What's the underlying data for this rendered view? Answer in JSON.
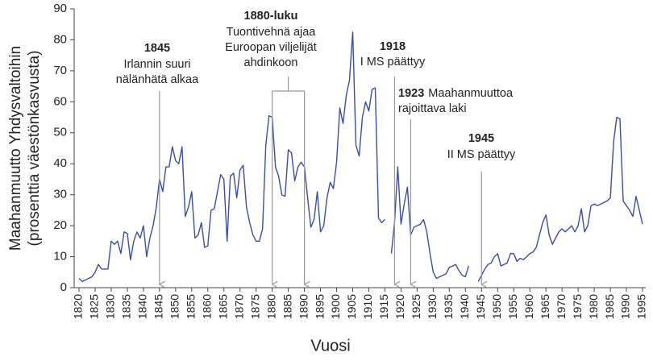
{
  "chart_data": {
    "type": "line",
    "y_label_lines": [
      "Maahanmuutto Yhdysvaltoihin",
      "(prosenttia väestönkasvusta)"
    ],
    "x_label": "Vuosi",
    "x": [
      1820,
      1821,
      1822,
      1823,
      1824,
      1825,
      1826,
      1827,
      1828,
      1829,
      1830,
      1831,
      1832,
      1833,
      1834,
      1835,
      1836,
      1837,
      1838,
      1839,
      1840,
      1841,
      1842,
      1843,
      1844,
      1845,
      1846,
      1847,
      1848,
      1849,
      1850,
      1851,
      1852,
      1853,
      1854,
      1855,
      1856,
      1857,
      1858,
      1859,
      1860,
      1861,
      1862,
      1863,
      1864,
      1865,
      1866,
      1867,
      1868,
      1869,
      1870,
      1871,
      1872,
      1873,
      1874,
      1875,
      1876,
      1877,
      1878,
      1879,
      1880,
      1881,
      1882,
      1883,
      1884,
      1885,
      1886,
      1887,
      1888,
      1889,
      1890,
      1891,
      1892,
      1893,
      1894,
      1895,
      1896,
      1897,
      1898,
      1899,
      1900,
      1901,
      1902,
      1903,
      1904,
      1905,
      1906,
      1907,
      1908,
      1909,
      1910,
      1911,
      1912,
      1913,
      1914,
      1915,
      1916,
      1917,
      1918,
      1919,
      1920,
      1921,
      1922,
      1923,
      1924,
      1925,
      1926,
      1927,
      1928,
      1929,
      1930,
      1931,
      1932,
      1933,
      1934,
      1935,
      1936,
      1937,
      1938,
      1939,
      1940,
      1941,
      1942,
      1943,
      1944,
      1945,
      1946,
      1947,
      1948,
      1949,
      1950,
      1951,
      1952,
      1953,
      1954,
      1955,
      1956,
      1957,
      1958,
      1959,
      1960,
      1961,
      1962,
      1963,
      1964,
      1965,
      1966,
      1967,
      1968,
      1969,
      1970,
      1971,
      1972,
      1973,
      1974,
      1975,
      1976,
      1977,
      1978,
      1979,
      1980,
      1981,
      1982,
      1983,
      1984,
      1985,
      1986,
      1987,
      1988,
      1989,
      1990,
      1991,
      1992,
      1993,
      1994,
      1995
    ],
    "series": [
      {
        "color": "#3b4ea3",
        "values": [
          3,
          2,
          2.5,
          3,
          3.5,
          5,
          7.5,
          6,
          6,
          6,
          15,
          14,
          15,
          11,
          18,
          17.5,
          9,
          15,
          18,
          16,
          20,
          10,
          16,
          20,
          26,
          35,
          31,
          39,
          39,
          45.5,
          41,
          40,
          45.5,
          23,
          26,
          31,
          16,
          17,
          21,
          13,
          13.5,
          25,
          25.5,
          31,
          36.5,
          35,
          15,
          36,
          37,
          29,
          38,
          39.5,
          26,
          21,
          17,
          15,
          15,
          19,
          46,
          55.5,
          55,
          39,
          36,
          30,
          29.5,
          44.5,
          43.5,
          34.5,
          39,
          40.5,
          39,
          29,
          19.5,
          22,
          31,
          18,
          20,
          29,
          34,
          32,
          40.5,
          58,
          53,
          62,
          67,
          82.5,
          46,
          42.5,
          55,
          60,
          57,
          64,
          64.5,
          22.5,
          21,
          22,
          null,
          11,
          21,
          39,
          20.5,
          27,
          32.5,
          17,
          19.5,
          20,
          20.5,
          22,
          18,
          11,
          5,
          3,
          3.5,
          4,
          4.5,
          6.5,
          7,
          7.5,
          5.5,
          4,
          3.5,
          7,
          null,
          null,
          2,
          4,
          6,
          7.5,
          8,
          10,
          11,
          7,
          7.5,
          8,
          11,
          11,
          8.5,
          9.5,
          9,
          10,
          11,
          11.5,
          13,
          17,
          21,
          23.5,
          17,
          14,
          16,
          18,
          19,
          18,
          19,
          20,
          18,
          20,
          25.5,
          18,
          20,
          26.5,
          27,
          26.5,
          27,
          27.5,
          28,
          29,
          47,
          55,
          54.5,
          28,
          26.5,
          25,
          23,
          29.5,
          25,
          20.5
        ]
      }
    ],
    "xlim": [
      1820,
      1995
    ],
    "xticks": [
      1820,
      1825,
      1830,
      1835,
      1840,
      1845,
      1850,
      1855,
      1860,
      1865,
      1870,
      1875,
      1880,
      1885,
      1890,
      1895,
      1900,
      1905,
      1910,
      1915,
      1920,
      1925,
      1930,
      1935,
      1940,
      1945,
      1950,
      1955,
      1960,
      1965,
      1970,
      1975,
      1980,
      1985,
      1990,
      1995
    ],
    "ylim": [
      0,
      90
    ],
    "yticks": [
      0,
      10,
      20,
      30,
      40,
      50,
      60,
      70,
      80,
      90
    ],
    "annotations": [
      {
        "title": "1845",
        "lines": [
          "Irlannin suuri",
          "nälänhätä alkaa"
        ],
        "x": [
          1845
        ]
      },
      {
        "title": "1880-luku",
        "lines": [
          "Tuontivehnä ajaa",
          "Euroopan viljelijät",
          "ahdinkoon"
        ],
        "x": [
          1880,
          1890
        ]
      },
      {
        "title": "1918",
        "lines": [
          "I MS päättyy"
        ],
        "x": [
          1918
        ]
      },
      {
        "title": "1923",
        "lines": [
          "Maahanmuuttoa",
          "rajoittava laki"
        ],
        "x": [
          1923
        ]
      },
      {
        "title": "1945",
        "lines": [
          "II MS päättyy"
        ],
        "x": [
          1945
        ]
      }
    ]
  }
}
